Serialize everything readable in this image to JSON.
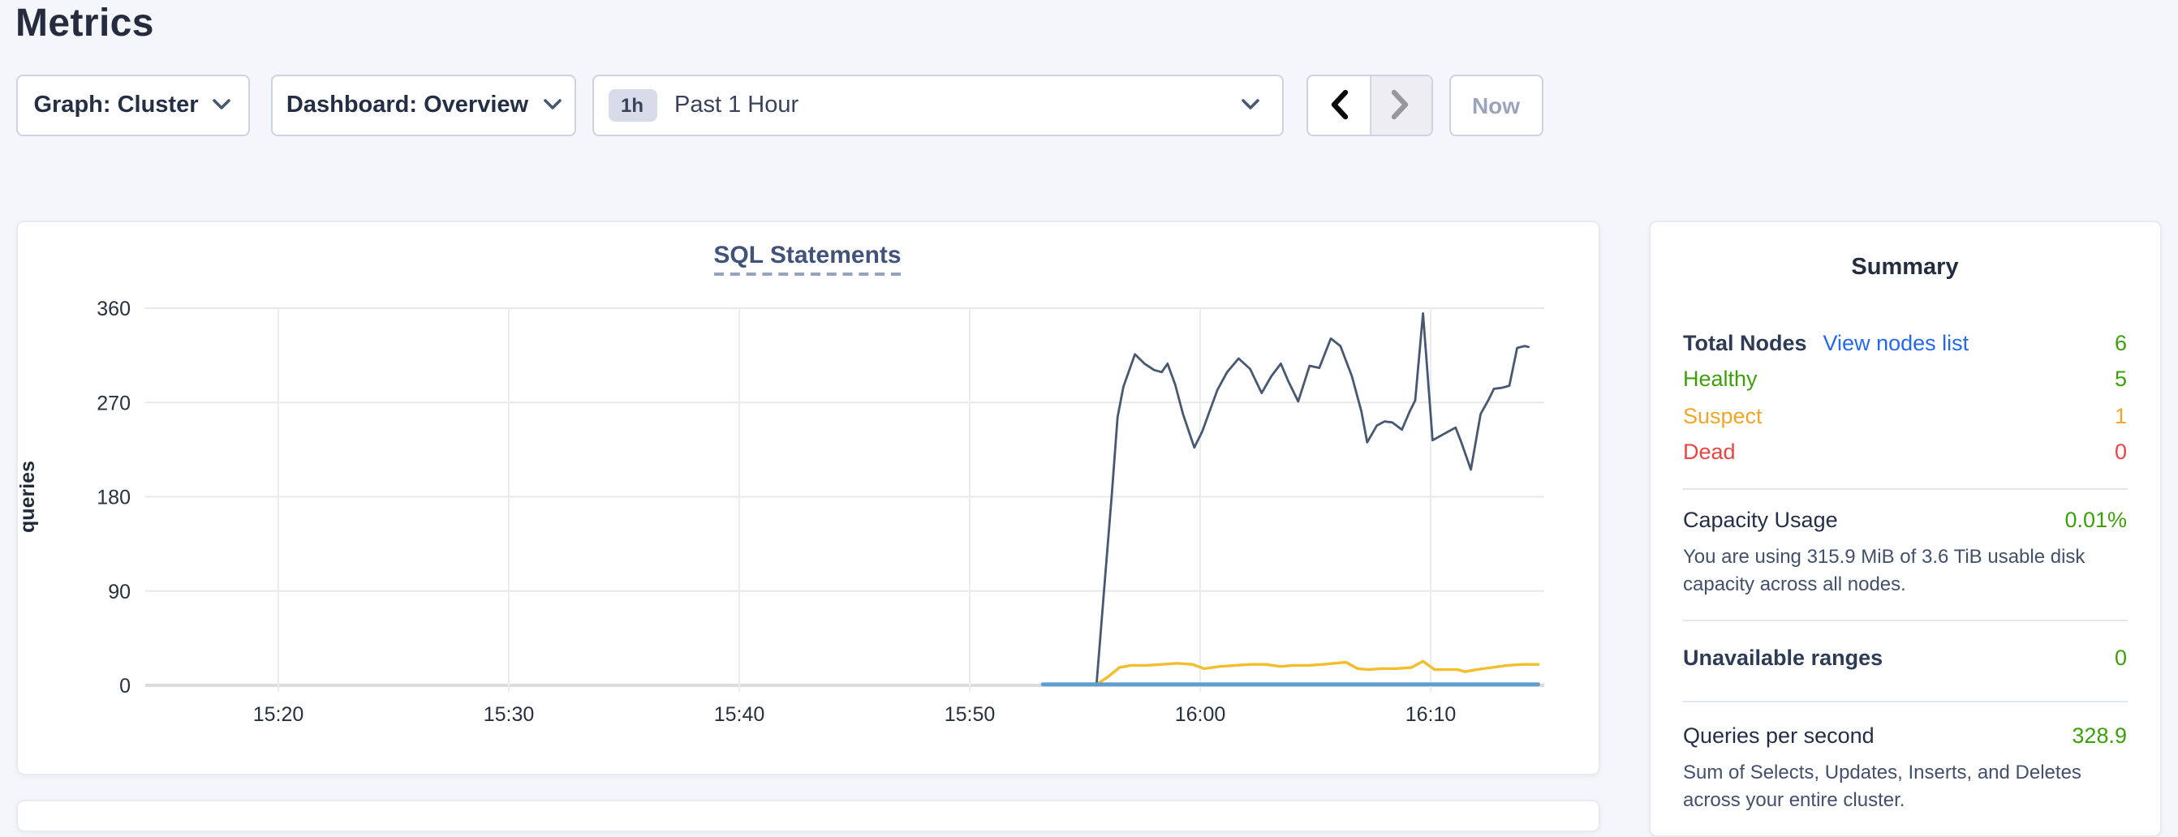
{
  "page": {
    "title": "Metrics",
    "background": "#f5f6fb"
  },
  "toolbar": {
    "graph_dropdown": {
      "label": "Graph: Cluster"
    },
    "dashboard_dropdown": {
      "label": "Dashboard: Overview"
    },
    "time_window_selector": {
      "badge": "1h",
      "label": "Past 1 Hour"
    },
    "now_button": {
      "label": "Now"
    }
  },
  "chart_card": {
    "title": "SQL Statements"
  },
  "chart_data": {
    "type": "line",
    "title": "SQL Statements",
    "ylabel": "queries",
    "xlabel": "",
    "ylim": [
      0,
      360
    ],
    "yticks": [
      0,
      90,
      180,
      270,
      360
    ],
    "xticks": [
      "15:20",
      "15:30",
      "15:40",
      "15:50",
      "16:00",
      "16:10"
    ],
    "xlim": [
      "15:14",
      "16:15"
    ],
    "grid": true,
    "legend": "none",
    "series": [
      {
        "name": "series-dark",
        "color": "#475872",
        "width": 1.4,
        "points": [
          [
            "15:55:30",
            0
          ],
          [
            "15:55:50",
            91
          ],
          [
            "15:56:10",
            183
          ],
          [
            "15:56:25",
            256
          ],
          [
            "15:56:40",
            285
          ],
          [
            "15:57:10",
            316
          ],
          [
            "15:57:35",
            307
          ],
          [
            "15:58:00",
            301
          ],
          [
            "15:58:20",
            299
          ],
          [
            "15:58:35",
            307
          ],
          [
            "15:58:55",
            287
          ],
          [
            "15:59:15",
            259
          ],
          [
            "15:59:45",
            227
          ],
          [
            "16:00:05",
            242
          ],
          [
            "16:00:45",
            282
          ],
          [
            "16:01:10",
            299
          ],
          [
            "16:01:40",
            312
          ],
          [
            "16:02:10",
            302
          ],
          [
            "16:02:40",
            279
          ],
          [
            "16:03:05",
            295
          ],
          [
            "16:03:30",
            307
          ],
          [
            "16:03:50",
            290
          ],
          [
            "16:04:15",
            271
          ],
          [
            "16:04:45",
            305
          ],
          [
            "16:05:10",
            303
          ],
          [
            "16:05:40",
            331
          ],
          [
            "16:06:05",
            324
          ],
          [
            "16:06:35",
            295
          ],
          [
            "16:07:00",
            261
          ],
          [
            "16:07:15",
            232
          ],
          [
            "16:07:40",
            248
          ],
          [
            "16:08:00",
            252
          ],
          [
            "16:08:20",
            251
          ],
          [
            "16:08:45",
            244
          ],
          [
            "16:09:05",
            261
          ],
          [
            "16:09:20",
            272
          ],
          [
            "16:09:40",
            355
          ],
          [
            "16:10:05",
            234
          ],
          [
            "16:10:25",
            238
          ],
          [
            "16:10:45",
            242
          ],
          [
            "16:11:05",
            246
          ],
          [
            "16:11:20",
            232
          ],
          [
            "16:11:45",
            206
          ],
          [
            "16:12:10",
            259
          ],
          [
            "16:12:30",
            272
          ],
          [
            "16:12:45",
            283
          ],
          [
            "16:13:05",
            284
          ],
          [
            "16:13:25",
            286
          ],
          [
            "16:13:45",
            322
          ],
          [
            "16:14:05",
            324
          ],
          [
            "16:14:15",
            323
          ]
        ]
      },
      {
        "name": "series-yellow",
        "color": "#f2be2c",
        "width": 1.7,
        "points": [
          [
            "15:53:10",
            1
          ],
          [
            "15:55:30",
            1
          ],
          [
            "15:56:00",
            8
          ],
          [
            "15:56:30",
            17
          ],
          [
            "15:57:00",
            19
          ],
          [
            "15:57:40",
            19
          ],
          [
            "15:58:20",
            20
          ],
          [
            "15:59:00",
            21
          ],
          [
            "15:59:40",
            20
          ],
          [
            "16:00:10",
            16
          ],
          [
            "16:00:50",
            18
          ],
          [
            "16:01:30",
            19
          ],
          [
            "16:02:10",
            20
          ],
          [
            "16:02:50",
            20
          ],
          [
            "16:03:30",
            18
          ],
          [
            "16:04:00",
            19
          ],
          [
            "16:04:40",
            19
          ],
          [
            "16:05:20",
            20
          ],
          [
            "16:05:50",
            21
          ],
          [
            "16:06:20",
            22
          ],
          [
            "16:06:50",
            16
          ],
          [
            "16:07:20",
            15
          ],
          [
            "16:07:50",
            16
          ],
          [
            "16:08:30",
            16
          ],
          [
            "16:09:10",
            17
          ],
          [
            "16:09:40",
            23
          ],
          [
            "16:10:10",
            15
          ],
          [
            "16:10:40",
            15
          ],
          [
            "16:11:10",
            15
          ],
          [
            "16:11:30",
            13
          ],
          [
            "16:12:00",
            15
          ],
          [
            "16:12:40",
            17
          ],
          [
            "16:13:20",
            19
          ],
          [
            "16:14:00",
            20
          ],
          [
            "16:14:40",
            20
          ]
        ]
      },
      {
        "name": "series-blue",
        "color": "#5f9ed1",
        "width": 2.4,
        "points": [
          [
            "15:53:10",
            1
          ],
          [
            "16:14:40",
            1
          ]
        ]
      }
    ]
  },
  "summary": {
    "title": "Summary",
    "total_nodes": {
      "label": "Total Nodes",
      "link": "View nodes list",
      "value": "6"
    },
    "node_statuses": [
      {
        "label": "Healthy",
        "value": "5",
        "color": "#3da00b"
      },
      {
        "label": "Suspect",
        "value": "1",
        "color": "#f2a527"
      },
      {
        "label": "Dead",
        "value": "0",
        "color": "#ee4343"
      }
    ],
    "capacity": {
      "label": "Capacity Usage",
      "value": "0.01%",
      "description": "You are using 315.9 MiB of 3.6 TiB usable disk capacity across all nodes."
    },
    "unavailable_ranges": {
      "label": "Unavailable ranges",
      "value": "0"
    },
    "queries_per_second": {
      "label": "Queries per second",
      "value": "328.9",
      "description": "Sum of Selects, Updates, Inserts, and Deletes across your entire cluster."
    }
  },
  "colors": {
    "link_blue": "#2468f2",
    "healthy_green": "#3da00b",
    "suspect_orange": "#f2a527",
    "dead_red": "#ee4343",
    "line_dark": "#475872",
    "line_yellow": "#f2be2c",
    "line_blue": "#5f9ed1",
    "heading_navy": "#2e3b55"
  }
}
